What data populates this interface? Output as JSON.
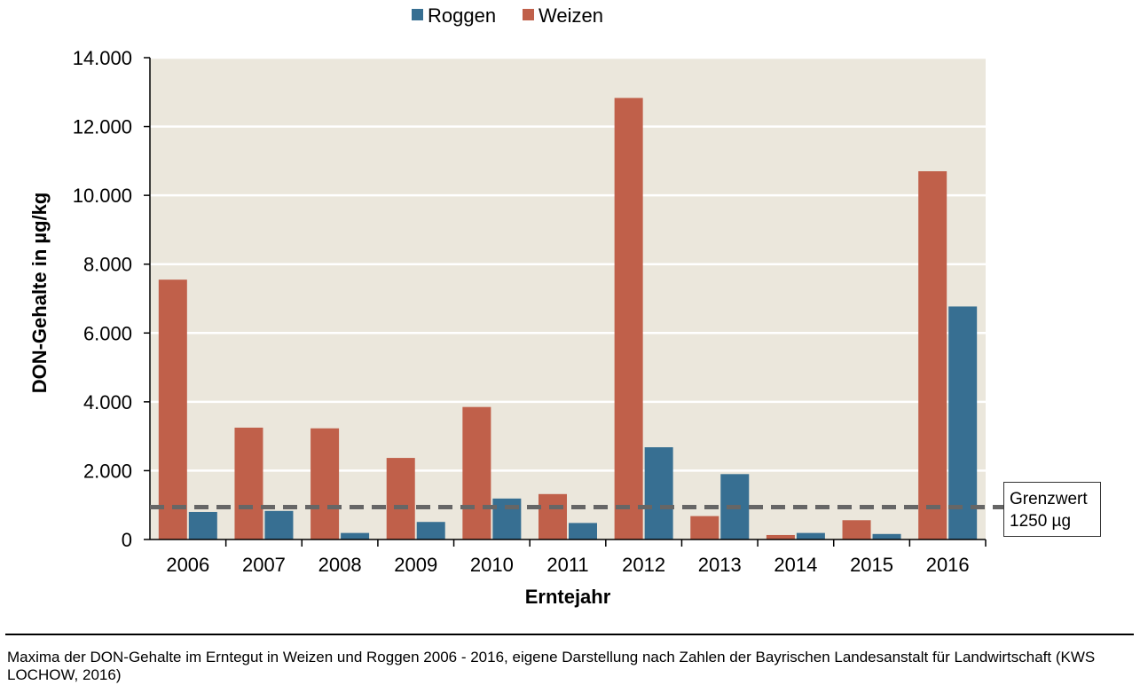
{
  "chart_data": {
    "type": "bar",
    "categories": [
      "2006",
      "2007",
      "2008",
      "2009",
      "2010",
      "2011",
      "2012",
      "2013",
      "2014",
      "2015",
      "2016"
    ],
    "series": [
      {
        "name": "Weizen",
        "color": "#c0604a",
        "values": [
          7550,
          3250,
          3230,
          2370,
          3850,
          1320,
          12830,
          680,
          130,
          560,
          10700
        ]
      },
      {
        "name": "Roggen",
        "color": "#376f92",
        "values": [
          800,
          830,
          190,
          510,
          1190,
          480,
          2680,
          1900,
          190,
          160,
          6770
        ]
      }
    ],
    "legend_order": [
      "Roggen",
      "Weizen"
    ],
    "ylim": [
      0,
      14000
    ],
    "yticks": [
      0,
      2000,
      4000,
      6000,
      8000,
      10000,
      12000,
      14000
    ],
    "ytick_labels": [
      "0",
      "2.000",
      "4.000",
      "6.000",
      "8.000",
      "10.000",
      "12.000",
      "14.000"
    ],
    "xlabel": "Erntejahr",
    "ylabel": "DON-Gehalte in µg/kg",
    "grid": true,
    "legend_position": "top",
    "plot_background": "#ebe7dc",
    "threshold": {
      "value": 1250,
      "line1": "Grenzwert",
      "line2": "1250 µg",
      "color": "#666666"
    }
  },
  "caption": "Maxima der DON-Gehalte im Erntegut in Weizen und Roggen 2006 - 2016, eigene Darstellung nach Zahlen der Bayrischen Landesanstalt für Landwirtschaft (KWS LOCHOW, 2016)"
}
